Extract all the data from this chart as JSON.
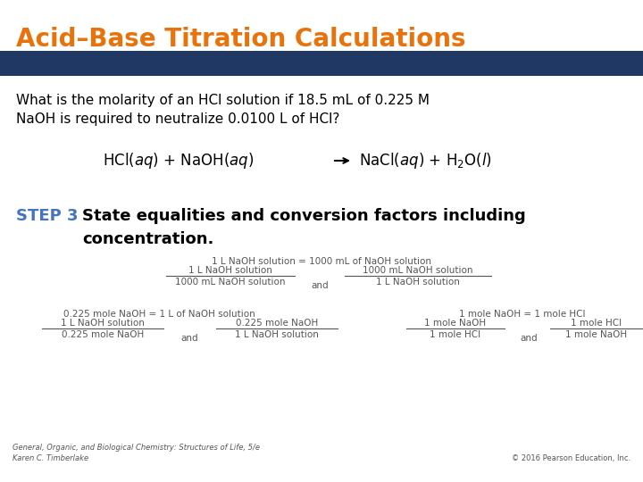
{
  "title": "Acid–Base Titration Calculations",
  "title_color": "#E8720C",
  "title_fontsize": 20,
  "bar_color": "#1F3864",
  "step3_color": "#4472C4",
  "text_color": "#000000",
  "gray_color": "#555555",
  "bg_color": "#FFFFFF",
  "footer_left": "General, Organic, and Biological Chemistry: Structures of Life, 5/e\nKaren C. Timberlake",
  "footer_right": "© 2016 Pearson Education, Inc."
}
